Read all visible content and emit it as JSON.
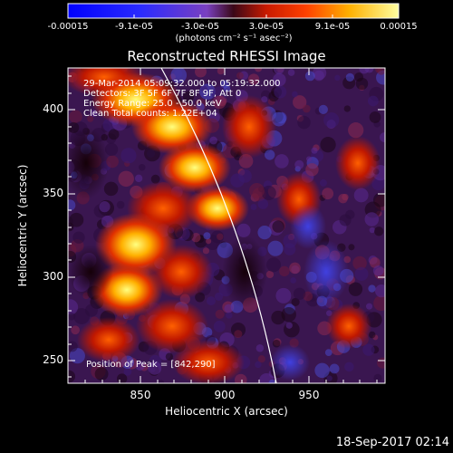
{
  "colorbar": {
    "ticks": [
      "-0.00015",
      "-9.1e-05",
      "-3.0e-05",
      "3.0e-05",
      "9.1e-05",
      "0.00015"
    ],
    "units": "(photons cm⁻² s⁻¹ asec⁻²)"
  },
  "plot": {
    "title": "Reconstructed RHESSI Image",
    "xlabel": "Heliocentric X (arcsec)",
    "ylabel": "Heliocentric Y (arcsec)",
    "xticks": [
      "850",
      "900",
      "950"
    ],
    "yticks": [
      "250",
      "300",
      "350",
      "400"
    ],
    "info_lines": [
      "29-Mar-2014 05:09:32.000 to 05:19:32.000",
      "Detectors: 3F 5F 6F 7F 8F 9F, Att 0",
      "Energy Range: 25.0 - 50.0 keV",
      "Clean    Total counts: 1.22E+04"
    ],
    "peak_label": "Position of Peak = [842,290]"
  },
  "footer": {
    "timestamp": "18-Sep-2017 02:14"
  }
}
